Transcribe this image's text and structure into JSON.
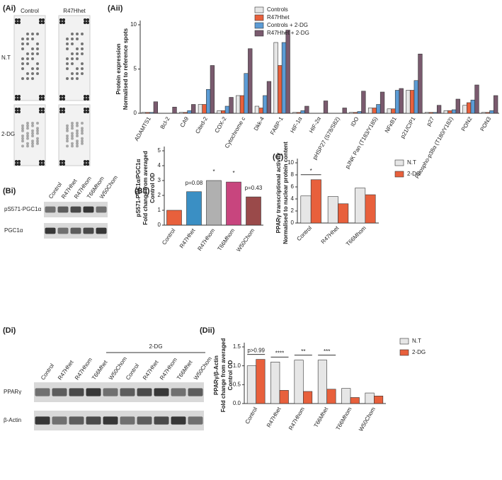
{
  "panel_labels": [
    "(Ai)",
    "(Bi)",
    "(Di)"
  ],
  "blot_Ai": {
    "columns": [
      "Control",
      "R47Hhet"
    ],
    "rows": [
      "N.T",
      "2-DG"
    ]
  },
  "blot_Bi": {
    "lanes": [
      "Control",
      "R47Hhet",
      "R47Hhom",
      "T66Mhom",
      "W50Chom"
    ],
    "rows": [
      "pS571-PGC1α",
      "PGC1α"
    ]
  },
  "blot_Di": {
    "lanes": [
      "Control",
      "R47Hhet",
      "R47Hhom",
      "T66Mhet",
      "W50Chom",
      "Control",
      "R47Hhet",
      "R47Hhom",
      "T66Mhet",
      "W50Chom"
    ],
    "group": "2-DG",
    "rows": [
      "PPARγ",
      "β-Actin"
    ]
  },
  "chart_data": [
    {
      "type": "bar",
      "title": "(Aii)",
      "ylabel": [
        "Protein expression",
        "Normalised to reference spots"
      ],
      "categories": [
        "ADAMTS1",
        "Bcl-2",
        "CA9",
        "Cited-2",
        "COX-2",
        "Cytochrome c",
        "Dkk-4",
        "FABP-1",
        "HIF-1α",
        "HIF-2α",
        "pHSP27 (S78/S82)",
        "IDO",
        "pJNK Pan (T183/Y185)",
        "NFκB1",
        "p21/CIP1",
        "p27",
        "Phospho-p38α (T180/Y182)",
        "PON2",
        "PON3"
      ],
      "series": [
        {
          "name": "Controls",
          "color": "#e6e6e6",
          "values": [
            0.1,
            0,
            0.1,
            1.0,
            0.3,
            2.0,
            0.8,
            8.0,
            0.1,
            0,
            0,
            0.1,
            0.6,
            0.5,
            2.6,
            0.1,
            0.3,
            0.9,
            0.1
          ]
        },
        {
          "name": "R47Hhet",
          "color": "#e8603c",
          "values": [
            0.1,
            0,
            0.1,
            1.0,
            0.3,
            2.0,
            0.6,
            5.4,
            0.1,
            0,
            0,
            0.1,
            0.6,
            0.5,
            2.6,
            0.1,
            0.3,
            1.2,
            0.1
          ]
        },
        {
          "name": "Controls + 2-DG",
          "color": "#5b9bd5",
          "values": [
            0.1,
            0,
            0.3,
            2.7,
            0.8,
            4.5,
            2.0,
            8.0,
            0.3,
            0,
            0,
            0.2,
            1.0,
            2.6,
            3.7,
            0.1,
            0.4,
            1.5,
            0.3
          ]
        },
        {
          "name": "R47Hhet + 2-DG",
          "color": "#7a5a6e",
          "values": [
            1.3,
            0.7,
            1.0,
            5.4,
            1.8,
            7.3,
            3.6,
            9.4,
            0.8,
            1.4,
            0.6,
            2.5,
            2.4,
            2.8,
            6.7,
            0.9,
            1.6,
            3.2,
            2.0
          ]
        }
      ],
      "ylim": [
        0,
        10
      ],
      "yticks": [
        0,
        5,
        10
      ],
      "legend": "top"
    },
    {
      "type": "bar",
      "title": "(Bii)",
      "ylabel": [
        "pS571-PGC1α/PGC1α",
        "Fold change from averaged",
        "Control OD"
      ],
      "categories": [
        "Control",
        "R47Hhet",
        "R47Hhom",
        "T66Mhom",
        "W50Chom"
      ],
      "values": [
        1.0,
        2.25,
        3.0,
        2.9,
        1.9
      ],
      "colors": [
        "#e8603c",
        "#3a8fc4",
        "#b0b0b0",
        "#c8457e",
        "#9a4a4a"
      ],
      "annotations": [
        null,
        "p=0.08",
        "*",
        "*",
        "p=0.43"
      ],
      "ylim": [
        0,
        5
      ],
      "yticks": [
        0,
        1,
        2,
        3,
        4,
        5
      ]
    },
    {
      "type": "bar",
      "title": "(C)",
      "ylabel": [
        "PPARγ transcriptional activity",
        "Normalised to nuclear protein content"
      ],
      "categories": [
        "Control",
        "R47Hhet",
        "T66Mhom"
      ],
      "series": [
        {
          "name": "N.T",
          "color": "#e6e6e6",
          "values": [
            4.5,
            4.4,
            5.8
          ]
        },
        {
          "name": "2-DG",
          "color": "#e8603c",
          "values": [
            7.2,
            3.2,
            4.7
          ]
        }
      ],
      "annotations": [
        "*",
        null,
        null
      ],
      "ylim": [
        0,
        10
      ],
      "yticks": [
        0,
        2,
        4,
        6,
        8,
        10
      ],
      "legend": "right"
    },
    {
      "type": "bar",
      "title": "(Dii)",
      "ylabel": [
        "PPARγ/β-Actin",
        "Fold change from averaged",
        "Control OD"
      ],
      "categories": [
        "Control",
        "R47Hhet",
        "R47Hhom",
        "T66Mhet",
        "T66Mhom",
        "W50Chom"
      ],
      "series": [
        {
          "name": "N.T",
          "color": "#e6e6e6",
          "values": [
            1.0,
            1.1,
            1.15,
            1.15,
            0.4,
            0.28
          ]
        },
        {
          "name": "2-DG",
          "color": "#e8603c",
          "values": [
            1.17,
            0.35,
            0.32,
            0.38,
            0.16,
            0.2
          ]
        }
      ],
      "annotations": [
        "p>0.99",
        "****",
        "**",
        "***",
        null,
        null
      ],
      "ylim": [
        0,
        1.5
      ],
      "yticks": [
        {
          "value": 0,
          "label": "0.0"
        },
        0.5,
        {
          "value": 1,
          "label": "1.0"
        },
        1.5
      ],
      "legend": "right"
    }
  ]
}
